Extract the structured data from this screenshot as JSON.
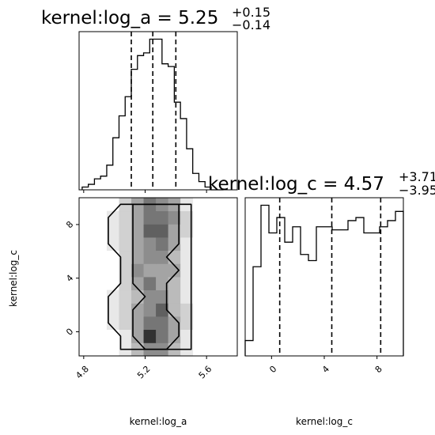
{
  "chart_data": {
    "type": "corner",
    "parameters": [
      "kernel:log_a",
      "kernel:log_c"
    ],
    "diagonal": [
      {
        "type": "histogram",
        "parameter": "kernel:log_a",
        "title_text": "kernel:log_a = 5.25",
        "title_plus": "+0.15",
        "title_minus": "−0.14",
        "quantiles": [
          5.11,
          5.25,
          5.4
        ],
        "xlim": [
          4.77,
          5.8
        ],
        "bin_edges": [
          4.79,
          4.83,
          4.87,
          4.91,
          4.95,
          4.99,
          5.03,
          5.07,
          5.11,
          5.15,
          5.19,
          5.23,
          5.27,
          5.31,
          5.35,
          5.39,
          5.43,
          5.47,
          5.51,
          5.55,
          5.59,
          5.63,
          5.67,
          5.71
        ],
        "counts": [
          1,
          2,
          4,
          5,
          9,
          19,
          27,
          34,
          44,
          49,
          50,
          55,
          55,
          46,
          45,
          32,
          26,
          15,
          6,
          3,
          1,
          0,
          0
        ]
      },
      {
        "type": "histogram",
        "parameter": "kernel:log_c",
        "title_text": "kernel:log_c = 4.57",
        "title_plus": "+3.71",
        "title_minus": "−3.95",
        "quantiles": [
          0.62,
          4.57,
          8.28
        ],
        "xlim": [
          -2.0,
          10.0
        ],
        "bin_edges": [
          -2.0,
          -1.4,
          -0.8,
          -0.2,
          0.4,
          1.0,
          1.6,
          2.2,
          2.8,
          3.4,
          4.0,
          4.6,
          5.2,
          5.8,
          6.4,
          7.0,
          7.6,
          8.2,
          8.8,
          9.4,
          10.0
        ],
        "counts": [
          5,
          29,
          49,
          40,
          45,
          37,
          42,
          33,
          31,
          42,
          42,
          41,
          41,
          44,
          45,
          40,
          40,
          42,
          44,
          47
        ]
      }
    ],
    "density": {
      "xparam": "kernel:log_a",
      "yparam": "kernel:log_c",
      "xlim": [
        4.77,
        5.8
      ],
      "ylim": [
        -1.8,
        10.0
      ],
      "x_ticks": [
        "4.8",
        "5.2",
        "5.6"
      ],
      "y_ticks": [
        "0",
        "4",
        "8"
      ],
      "x_bin_edges": [
        4.79,
        4.87,
        4.95,
        5.03,
        5.11,
        5.19,
        5.27,
        5.35,
        5.43,
        5.51,
        5.59,
        5.67,
        5.75
      ],
      "y_bin_edges": [
        -1.8,
        -0.82,
        0.17,
        1.15,
        2.13,
        3.12,
        4.1,
        5.08,
        6.07,
        7.05,
        8.03,
        9.02,
        10.0
      ],
      "cells": [
        [
          0,
          0,
          0,
          1,
          3,
          5,
          5,
          3,
          1,
          0,
          0,
          0
        ],
        [
          0,
          0,
          0,
          1,
          4,
          9,
          6,
          4,
          1,
          0,
          0,
          0
        ],
        [
          0,
          0,
          1,
          2,
          4,
          6,
          6,
          4,
          2,
          0,
          0,
          0
        ],
        [
          0,
          0,
          1,
          2,
          4,
          5,
          7,
          3,
          2,
          0,
          0,
          0
        ],
        [
          0,
          0,
          1,
          2,
          3,
          5,
          5,
          3,
          1,
          0,
          0,
          0
        ],
        [
          0,
          0,
          0,
          2,
          4,
          6,
          4,
          3,
          1,
          0,
          0,
          0
        ],
        [
          0,
          0,
          0,
          2,
          5,
          4,
          4,
          4,
          1,
          0,
          0,
          0
        ],
        [
          0,
          0,
          0,
          2,
          4,
          5,
          5,
          3,
          1,
          0,
          0,
          0
        ],
        [
          0,
          0,
          1,
          2,
          4,
          5,
          6,
          4,
          1,
          0,
          0,
          0
        ],
        [
          0,
          0,
          1,
          2,
          4,
          7,
          7,
          4,
          2,
          0,
          0,
          0
        ],
        [
          0,
          0,
          1,
          2,
          4,
          6,
          6,
          5,
          2,
          0,
          0,
          0
        ],
        [
          0,
          0,
          0,
          2,
          4,
          6,
          5,
          4,
          1,
          0,
          0,
          0
        ]
      ],
      "contour_levels": 2
    },
    "x_ticks_c": [
      "0",
      "4",
      "8"
    ],
    "xlabel_a": "kernel:log_a",
    "xlabel_c": "kernel:log_c",
    "ylabel_c": "kernel:log_c",
    "colors": {
      "line": "#000000",
      "density": "#000000",
      "background": "#ffffff"
    }
  }
}
